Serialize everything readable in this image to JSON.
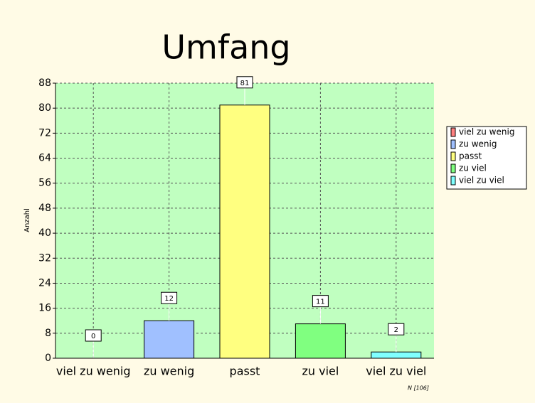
{
  "chart_data": {
    "type": "bar",
    "title": "Umfang",
    "y_label": "Anzahl",
    "categories": [
      "viel zu wenig",
      "zu wenig",
      "passt",
      "zu viel",
      "viel zu viel"
    ],
    "values": [
      0,
      12,
      81,
      11,
      2
    ],
    "colors": [
      "#ff8080",
      "#a0c0ff",
      "#ffff80",
      "#80ff80",
      "#80ffff"
    ],
    "ylim": [
      0,
      88
    ],
    "yticks": [
      0,
      8,
      16,
      24,
      32,
      40,
      48,
      56,
      64,
      72,
      80,
      88
    ],
    "grid": true,
    "legend": "right",
    "annotation": "N [106]"
  }
}
